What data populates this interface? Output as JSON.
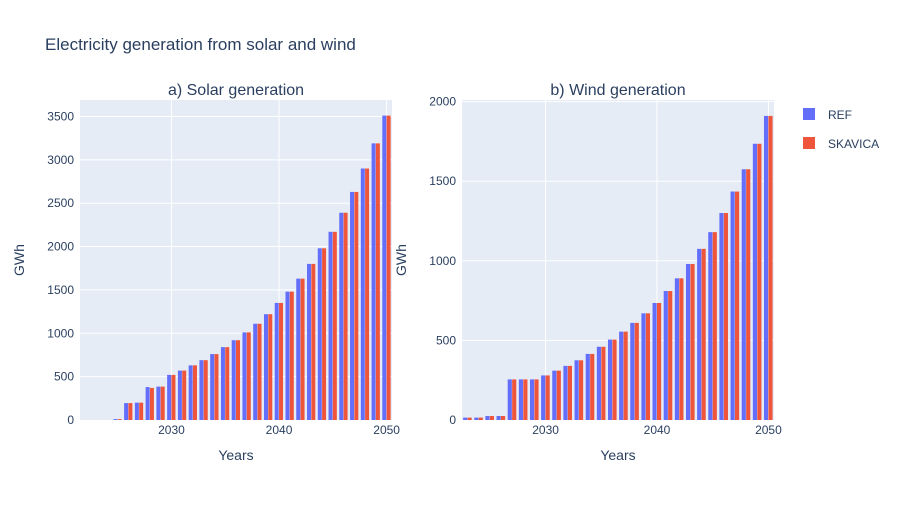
{
  "title": "Electricity generation from solar and wind",
  "legend": [
    {
      "name": "REF",
      "color": "#636efa"
    },
    {
      "name": "SKAVICA",
      "color": "#ef553b"
    }
  ],
  "colors": {
    "plot_bg": "#e5ecf6",
    "grid": "#ffffff",
    "text": "#2a3f5f"
  },
  "chart_data": [
    {
      "type": "bar",
      "title": "a) Solar generation",
      "xlabel": "Years",
      "ylabel": "GWh",
      "xlim": [
        2021.5,
        2050.5
      ],
      "ylim": [
        0,
        3690
      ],
      "xticks": [
        2030,
        2040,
        2050
      ],
      "yticks": [
        0,
        500,
        1000,
        1500,
        2000,
        2500,
        3000,
        3500
      ],
      "x": [
        2022,
        2023,
        2024,
        2025,
        2026,
        2027,
        2028,
        2029,
        2030,
        2031,
        2032,
        2033,
        2034,
        2035,
        2036,
        2037,
        2038,
        2039,
        2040,
        2041,
        2042,
        2043,
        2044,
        2045,
        2046,
        2047,
        2048,
        2049,
        2050
      ],
      "series": [
        {
          "name": "REF",
          "values": [
            0,
            0,
            0,
            10,
            195,
            200,
            380,
            385,
            520,
            570,
            630,
            690,
            760,
            840,
            920,
            1010,
            1110,
            1220,
            1350,
            1480,
            1630,
            1800,
            1980,
            2170,
            2390,
            2630,
            2900,
            3190,
            3510
          ]
        },
        {
          "name": "SKAVICA",
          "values": [
            0,
            0,
            0,
            10,
            195,
            200,
            370,
            385,
            520,
            570,
            630,
            690,
            760,
            840,
            920,
            1010,
            1110,
            1220,
            1350,
            1480,
            1630,
            1800,
            1980,
            2170,
            2390,
            2630,
            2900,
            3190,
            3510
          ]
        }
      ]
    },
    {
      "type": "bar",
      "title": "b) Wind generation",
      "xlabel": "Years",
      "ylabel": "GWh",
      "xlim": [
        2022.5,
        2050.5
      ],
      "ylim": [
        0,
        2010
      ],
      "xticks": [
        2030,
        2040,
        2050
      ],
      "yticks": [
        0,
        500,
        1000,
        1500,
        2000
      ],
      "x": [
        2023,
        2024,
        2025,
        2026,
        2027,
        2028,
        2029,
        2030,
        2031,
        2032,
        2033,
        2034,
        2035,
        2036,
        2037,
        2038,
        2039,
        2040,
        2041,
        2042,
        2043,
        2044,
        2045,
        2046,
        2047,
        2048,
        2049,
        2050
      ],
      "series": [
        {
          "name": "REF",
          "values": [
            15,
            15,
            25,
            25,
            255,
            255,
            255,
            280,
            310,
            340,
            375,
            415,
            460,
            505,
            555,
            610,
            670,
            735,
            810,
            890,
            980,
            1075,
            1180,
            1300,
            1435,
            1575,
            1735,
            1910
          ]
        },
        {
          "name": "SKAVICA",
          "values": [
            15,
            15,
            25,
            25,
            255,
            255,
            255,
            280,
            310,
            340,
            375,
            415,
            460,
            505,
            555,
            610,
            670,
            735,
            810,
            890,
            980,
            1075,
            1180,
            1300,
            1435,
            1575,
            1735,
            1910
          ]
        }
      ]
    }
  ]
}
